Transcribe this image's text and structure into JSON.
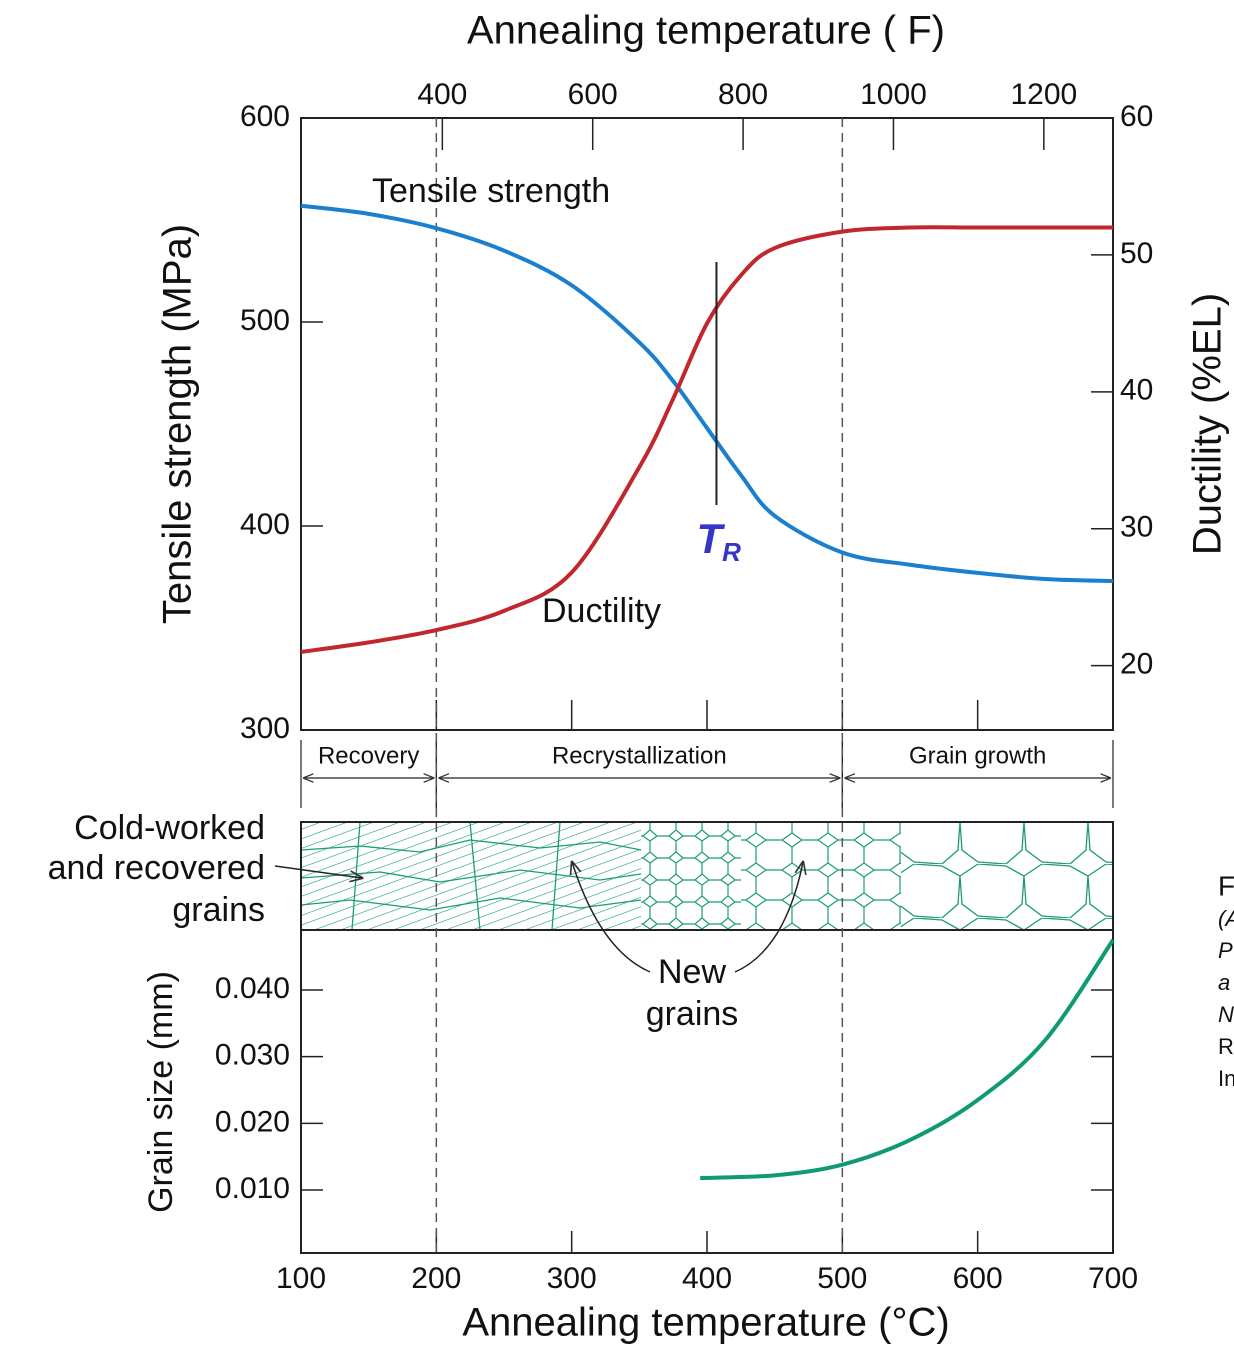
{
  "chart_data": [
    {
      "type": "line",
      "x2label": "Annealing temperature ( F)",
      "x2lim": [
        212,
        1292
      ],
      "x2ticks": [
        400,
        600,
        800,
        1000,
        1200
      ],
      "ylabel": "Tensile strength (MPa)",
      "ylim": [
        300,
        600
      ],
      "yticks": [
        300,
        400,
        500,
        600
      ],
      "y2label": "Ductility (%EL)",
      "y2lim": [
        15.3,
        60
      ],
      "y2ticks": [
        20,
        30,
        40,
        50,
        60
      ],
      "x": [
        100,
        150,
        200,
        250,
        300,
        350,
        375,
        400,
        425,
        450,
        500,
        550,
        600,
        650,
        700
      ],
      "series": [
        {
          "name": "Tensile strength",
          "color": "#1b7fcf",
          "values": [
            557,
            553,
            546,
            535,
            518,
            490,
            471,
            448,
            425,
            405,
            387,
            381,
            377,
            374,
            373
          ]
        },
        {
          "name": "Ductility",
          "color": "#c1272d",
          "axis": "y2",
          "values": [
            21,
            21.7,
            22.6,
            24,
            26.8,
            34.5,
            39.5,
            45,
            48.5,
            50.5,
            51.7,
            52,
            52,
            52,
            52
          ]
        }
      ],
      "annotation": {
        "text": "T",
        "subscript": "R",
        "x": 407
      }
    },
    {
      "type": "line",
      "xlabel": "Annealing temperature (°C)",
      "xlim": [
        100,
        700
      ],
      "xticks": [
        100,
        200,
        300,
        400,
        500,
        600,
        700
      ],
      "ylabel": "Grain size (mm)",
      "ylim": [
        0.00055,
        0.049
      ],
      "yticks": [
        {
          "value": 0.01,
          "label": "0.010"
        },
        {
          "value": 0.02,
          "label": "0.020"
        },
        {
          "value": 0.03,
          "label": "0.030"
        },
        {
          "value": 0.04,
          "label": "0.040"
        }
      ],
      "x": [
        395,
        450,
        500,
        550,
        600,
        650,
        700
      ],
      "series": [
        {
          "color": "#0e9a73",
          "values": [
            0.0118,
            0.0122,
            0.0138,
            0.0175,
            0.0235,
            0.0325,
            0.0475
          ]
        }
      ]
    }
  ],
  "regions": [
    {
      "label": "Recovery",
      "range": [
        100,
        200
      ]
    },
    {
      "label": "Recrystallization",
      "range": [
        200,
        500
      ]
    },
    {
      "label": "Grain growth",
      "range": [
        500,
        700
      ]
    }
  ],
  "micrograph": {
    "left_label": [
      "Cold-worked",
      "and recovered",
      "grains"
    ],
    "new_grains_label": [
      "New",
      "grains"
    ]
  },
  "side_note": [
    "F",
    "(A",
    "P",
    "a",
    "N",
    "R",
    "In"
  ]
}
